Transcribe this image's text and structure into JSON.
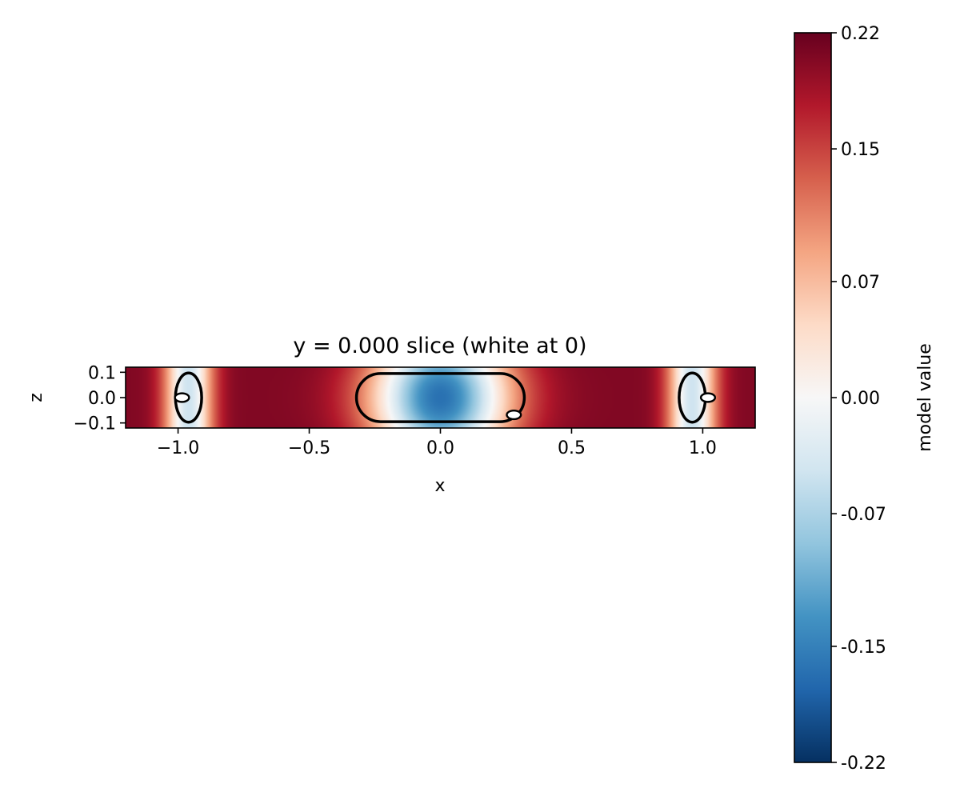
{
  "chart_data": {
    "type": "heatmap",
    "title": "y = 0.000 slice (white at 0)",
    "xlabel": "x",
    "ylabel": "z",
    "xlim": [
      -1.2,
      1.2
    ],
    "ylim": [
      -0.12,
      0.12
    ],
    "x_ticks": [
      {
        "value": -1.0,
        "label": "−1.0"
      },
      {
        "value": -0.5,
        "label": "−0.5"
      },
      {
        "value": 0.0,
        "label": "0.0"
      },
      {
        "value": 0.5,
        "label": "0.5"
      },
      {
        "value": 1.0,
        "label": "1.0"
      }
    ],
    "y_ticks": [
      {
        "value": 0.1,
        "label": "0.1"
      },
      {
        "value": 0.0,
        "label": "0.0"
      },
      {
        "value": -0.1,
        "label": "−0.1"
      }
    ],
    "grid": false,
    "colormap": "RdBu_r",
    "colormap_stops": [
      "#053061",
      "#2166ac",
      "#4393c3",
      "#92c5de",
      "#d1e5f0",
      "#f7f7f7",
      "#fddbc7",
      "#f4a582",
      "#d6604d",
      "#b2182b",
      "#67001f"
    ],
    "value_range": [
      -0.22,
      0.22
    ],
    "colorbar": {
      "label": "model value",
      "placement": "right",
      "ticks": [
        {
          "value": 0.22,
          "label": "0.22"
        },
        {
          "value": 0.15,
          "label": "0.15"
        },
        {
          "value": 0.07,
          "label": "0.07"
        },
        {
          "value": 0.0,
          "label": "0.00"
        },
        {
          "value": -0.07,
          "label": "-0.07"
        },
        {
          "value": -0.15,
          "label": "-0.15"
        },
        {
          "value": -0.22,
          "label": "-0.22"
        }
      ]
    },
    "zero_contours": [
      {
        "kind": "rounded-box",
        "center": [
          0.0,
          0.0
        ],
        "half_width": 0.32,
        "half_height": 0.095
      },
      {
        "kind": "ellipse",
        "center": [
          -0.96,
          0.0
        ],
        "rx": 0.05,
        "ry": 0.097
      },
      {
        "kind": "ellipse",
        "center": [
          0.96,
          0.0
        ],
        "rx": 0.05,
        "ry": 0.097
      },
      {
        "kind": "ellipse",
        "center": [
          -0.985,
          0.0
        ],
        "rx": 0.027,
        "ry": 0.017
      },
      {
        "kind": "ellipse",
        "center": [
          1.02,
          0.0
        ],
        "rx": 0.027,
        "ry": 0.017
      },
      {
        "kind": "ellipse",
        "center": [
          0.28,
          -0.068
        ],
        "rx": 0.027,
        "ry": 0.017
      }
    ]
  }
}
